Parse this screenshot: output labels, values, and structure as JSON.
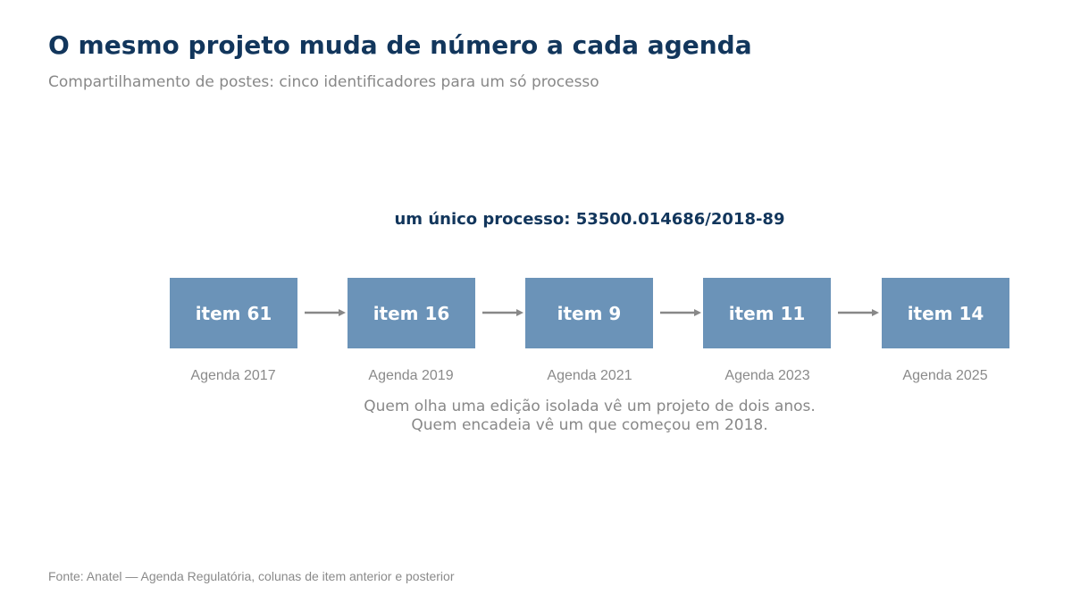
{
  "header": {
    "title": "O mesmo projeto muda de número a cada agenda",
    "subtitle": "Compartilhamento de postes: cinco identificadores para um só processo"
  },
  "diagram": {
    "process_label": "um único processo: 53500.014686/2018-89",
    "steps": [
      {
        "item": "item 61",
        "agenda": "Agenda 2017"
      },
      {
        "item": "item 16",
        "agenda": "Agenda 2019"
      },
      {
        "item": "item 9",
        "agenda": "Agenda 2021"
      },
      {
        "item": "item 11",
        "agenda": "Agenda 2023"
      },
      {
        "item": "item 14",
        "agenda": "Agenda 2025"
      }
    ],
    "note_lines": [
      "Quem olha uma edição isolada vê um projeto de dois anos.",
      "Quem encadeia vê um que começou em 2018."
    ]
  },
  "footer": {
    "source": "Fonte: Anatel — Agenda Regulatória, colunas de item anterior e posterior"
  },
  "colors": {
    "title": "#12365c",
    "box_fill": "#6b93b8",
    "muted_text": "#888888",
    "arrow": "#888888"
  }
}
